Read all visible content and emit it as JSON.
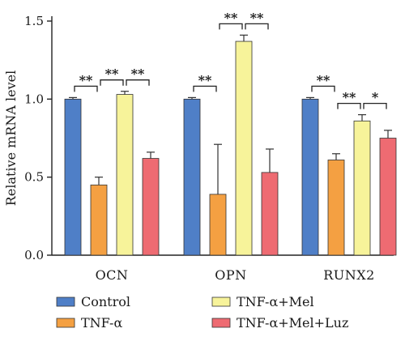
{
  "chart_data": {
    "type": "bar",
    "title": "",
    "xlabel": "",
    "ylabel": "Relative mRNA level",
    "ylim": [
      0,
      1.5
    ],
    "yticks": [
      "0.0",
      "0.5",
      "1.0",
      "1.5"
    ],
    "grid": false,
    "legend_position": "bottom",
    "categories": [
      "OCN",
      "OPN",
      "RUNX2"
    ],
    "series": [
      {
        "name": "Control",
        "color": "#4f7fc7",
        "values": [
          1.0,
          1.0,
          1.0
        ],
        "errors": [
          0.01,
          0.01,
          0.01
        ]
      },
      {
        "name": "TNF-α",
        "color": "#f4a042",
        "values": [
          0.45,
          0.39,
          0.61
        ],
        "errors": [
          0.05,
          0.32,
          0.04
        ]
      },
      {
        "name": "TNF-α+Mel",
        "color": "#f7f39a",
        "values": [
          1.03,
          1.37,
          0.86
        ],
        "errors": [
          0.02,
          0.04,
          0.04
        ]
      },
      {
        "name": "TNF-α+Mel+Luz",
        "color": "#ee6b72",
        "values": [
          0.62,
          0.53,
          0.75
        ],
        "errors": [
          0.04,
          0.15,
          0.05
        ]
      }
    ],
    "significance": [
      {
        "category": 0,
        "from": 0,
        "to": 1,
        "label": "**"
      },
      {
        "category": 0,
        "from": 1,
        "to": 2,
        "label": "**"
      },
      {
        "category": 0,
        "from": 2,
        "to": 3,
        "label": "**"
      },
      {
        "category": 1,
        "from": 0,
        "to": 1,
        "label": "**"
      },
      {
        "category": 1,
        "from": 1,
        "to": 2,
        "label": "**"
      },
      {
        "category": 1,
        "from": 2,
        "to": 3,
        "label": "**"
      },
      {
        "category": 2,
        "from": 0,
        "to": 1,
        "label": "**"
      },
      {
        "category": 2,
        "from": 1,
        "to": 2,
        "label": "**"
      },
      {
        "category": 2,
        "from": 2,
        "to": 3,
        "label": "*"
      }
    ]
  }
}
